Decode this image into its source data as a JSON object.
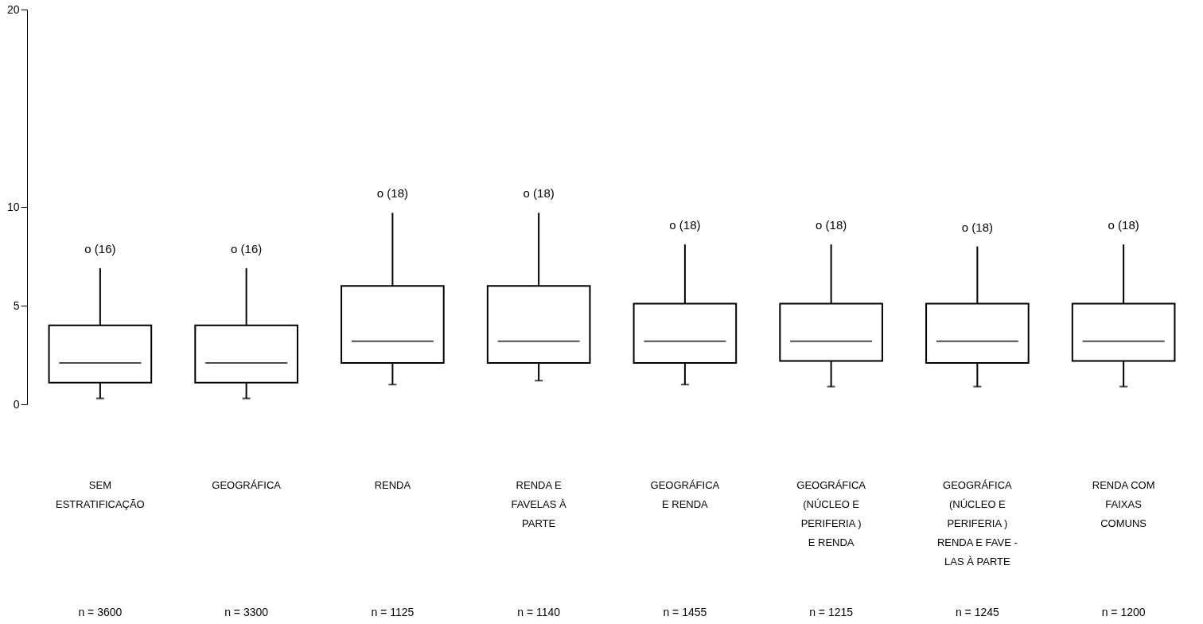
{
  "chart_data": {
    "type": "box",
    "categories": [
      "SEM\nESTRATIFICAÇÃO",
      "GEOGRÁFICA",
      "RENDA",
      "RENDA E\nFAVELAS À\nPARTE",
      "GEOGRÁFICA\nE RENDA",
      "GEOGRÁFICA\n(NÚCLEO E\nPERIFERIA )\nE RENDA",
      "GEOGRÁFICA\n(NÚCLEO E\nPERIFERIA )\nRENDA E FAVE -\nLAS À PARTE",
      "RENDA COM\nFAIXAS\nCOMUNS"
    ],
    "boxes": [
      {
        "low": 0.3,
        "q1": 1.1,
        "median": 2.1,
        "q3": 4.0,
        "high": 6.9
      },
      {
        "low": 0.3,
        "q1": 1.1,
        "median": 2.1,
        "q3": 4.0,
        "high": 6.9
      },
      {
        "low": 1.0,
        "q1": 2.1,
        "median": 3.2,
        "q3": 6.0,
        "high": 9.7
      },
      {
        "low": 1.2,
        "q1": 2.1,
        "median": 3.2,
        "q3": 6.0,
        "high": 9.7
      },
      {
        "low": 1.0,
        "q1": 2.1,
        "median": 3.2,
        "q3": 5.1,
        "high": 8.1
      },
      {
        "low": 0.9,
        "q1": 2.2,
        "median": 3.2,
        "q3": 5.1,
        "high": 8.1
      },
      {
        "low": 0.9,
        "q1": 2.1,
        "median": 3.2,
        "q3": 5.1,
        "high": 8.0
      },
      {
        "low": 0.9,
        "q1": 2.2,
        "median": 3.2,
        "q3": 5.1,
        "high": 8.1
      }
    ],
    "ylim": [
      0,
      20
    ],
    "yticks": [
      0,
      5,
      10,
      20
    ],
    "grid": false,
    "annotations": [
      "o (16)",
      "o (16)",
      "o (18)",
      "o (18)",
      "o (18)",
      "o (18)",
      "o (18)",
      "o (18)",
      "n = 3600",
      "n = 3300",
      "n = 1125",
      "n = 1140",
      "n = 1455",
      "n = 1215",
      "n = 1245",
      "n = 1200"
    ]
  }
}
